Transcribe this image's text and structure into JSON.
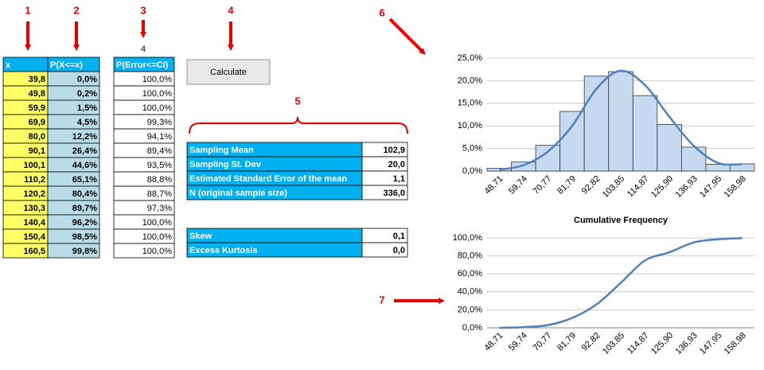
{
  "markers": [
    "1",
    "2",
    "3",
    "4",
    "5",
    "6",
    "7"
  ],
  "table1": {
    "headers": [
      "x",
      "P(X<=x)"
    ],
    "rows": [
      [
        "39,8",
        "0,0%"
      ],
      [
        "49,8",
        "0,2%"
      ],
      [
        "59,9",
        "1,5%"
      ],
      [
        "69,9",
        "4,5%"
      ],
      [
        "80,0",
        "12,2%"
      ],
      [
        "90,1",
        "26,4%"
      ],
      [
        "100,1",
        "44,6%"
      ],
      [
        "110,2",
        "65,1%"
      ],
      [
        "120,2",
        "80,4%"
      ],
      [
        "130,3",
        "89,7%"
      ],
      [
        "140,4",
        "96,2%"
      ],
      [
        "150,4",
        "98,5%"
      ],
      [
        "160,5",
        "99,8%"
      ]
    ]
  },
  "table2": {
    "input": "4",
    "header": "P(Error<=CI)",
    "rows": [
      "100,0%",
      "100,0%",
      "100,0%",
      "99,3%",
      "94,1%",
      "89,4%",
      "93,5%",
      "88,8%",
      "88,7%",
      "97,3%",
      "100,0%",
      "100,0%",
      "100,0%"
    ]
  },
  "button": "Calculate",
  "stats": [
    [
      "Sampling Mean",
      "102,9"
    ],
    [
      "Sampling St. Dev",
      "20,0"
    ],
    [
      "Estimated Standard Error of the mean",
      "1,1"
    ],
    [
      "N (original sample size)",
      "336,0"
    ]
  ],
  "shape": [
    [
      "Skew",
      "0,1"
    ],
    [
      "Excess Kurtosis",
      "0,0"
    ]
  ],
  "chart_data": [
    {
      "type": "combo",
      "categories": [
        "48,71",
        "59,74",
        "70,77",
        "81,79",
        "92,82",
        "103,85",
        "114,87",
        "125,90",
        "136,93",
        "147,95",
        "158,98"
      ],
      "series": [
        {
          "type": "bar",
          "color": "#c5d9f1",
          "values": [
            0.6,
            2,
            5.7,
            13.2,
            21,
            22,
            16.7,
            10.3,
            5.3,
            1.5,
            1.6
          ]
        },
        {
          "type": "line",
          "color": "#4f81bd",
          "values": [
            0.3,
            1.3,
            4.3,
            10,
            18.2,
            22.2,
            19,
            12,
            5.6,
            1.8,
            1.5
          ]
        }
      ],
      "ylim": [
        0,
        25
      ],
      "yticks": [
        {
          "value": 0,
          "label": "0,0%"
        },
        {
          "value": 5,
          "label": "5,0%"
        },
        {
          "value": 10,
          "label": "10,0%"
        },
        {
          "value": 15,
          "label": "15,0%"
        },
        {
          "value": 20,
          "label": "20,0%"
        },
        {
          "value": 25,
          "label": "25,0%"
        }
      ],
      "grid": true
    },
    {
      "type": "line",
      "title": "Cumulative Frequency",
      "categories": [
        "48,71",
        "59,74",
        "70,77",
        "81,79",
        "92,82",
        "103,85",
        "114,87",
        "125,90",
        "136,93",
        "147,95",
        "158,98"
      ],
      "series": [
        {
          "type": "line",
          "color": "#4f81bd",
          "values": [
            0,
            0.8,
            3,
            11,
            26,
            50,
            75,
            84,
            95,
            98.5,
            99.8
          ]
        }
      ],
      "ylim": [
        0,
        100
      ],
      "yticks": [
        {
          "value": 0,
          "label": "0,0%"
        },
        {
          "value": 20,
          "label": "20,0%"
        },
        {
          "value": 40,
          "label": "40,0%"
        },
        {
          "value": 60,
          "label": "60,0%"
        },
        {
          "value": 80,
          "label": "80,0%"
        },
        {
          "value": 100,
          "label": "100,0%"
        }
      ],
      "grid": true
    }
  ]
}
